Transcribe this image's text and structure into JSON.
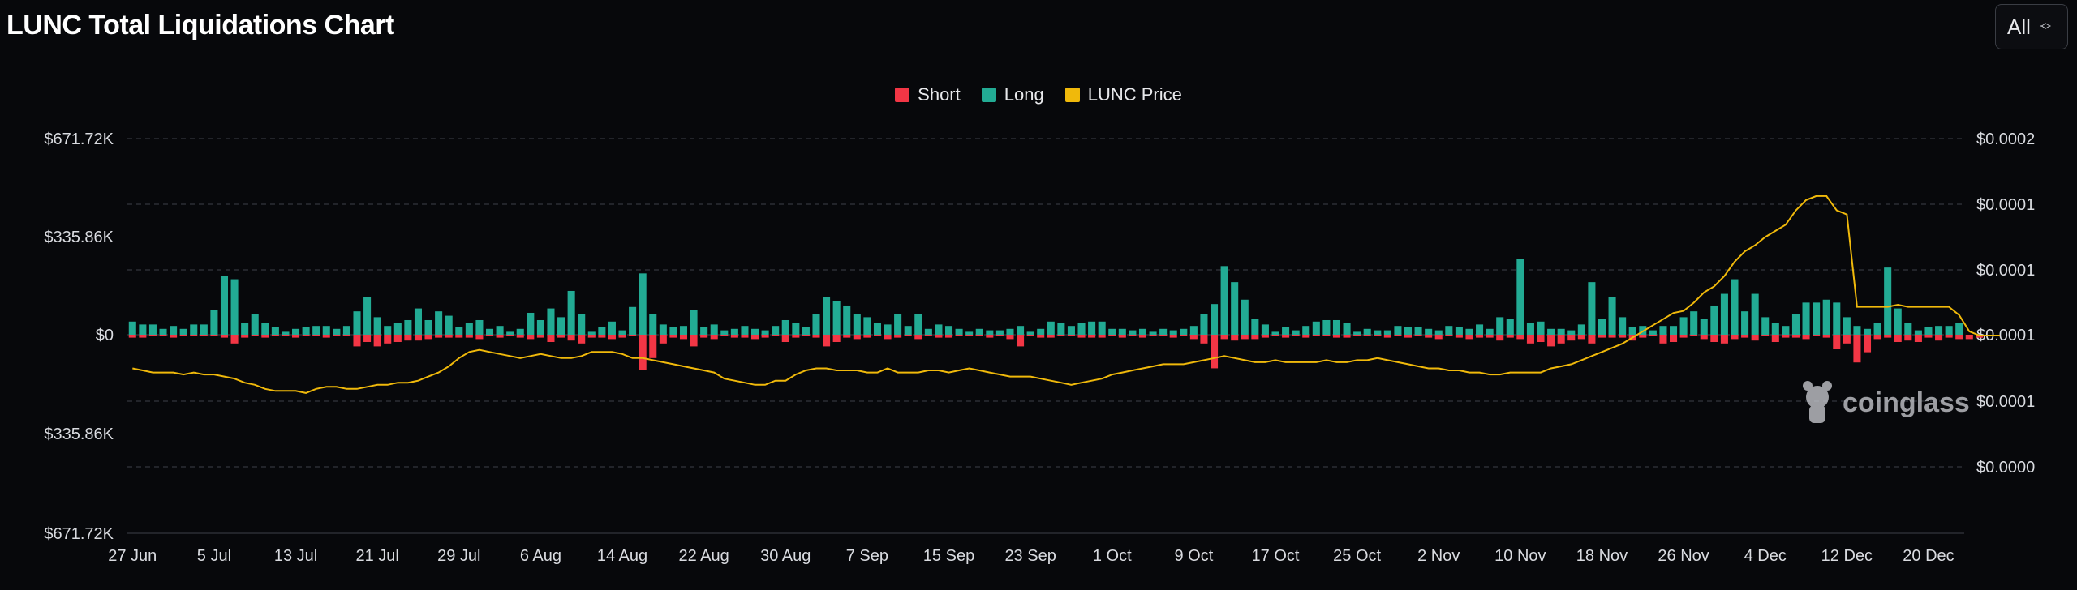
{
  "header": {
    "title": "LUNC Total Liquidations Chart"
  },
  "range_select": {
    "value": "All"
  },
  "colors": {
    "short": "#f23645",
    "long": "#22ab94",
    "price": "#f0b90b",
    "grid": "#2b2e35",
    "background": "#07080b"
  },
  "watermark": {
    "text": "coinglass",
    "icon": "coinglass-logo-icon"
  },
  "chart_data": {
    "type": "bar",
    "title": "LUNC Total Liquidations Chart",
    "legend": {
      "placement": "top-center",
      "entries": [
        "Short",
        "Long",
        "LUNC Price"
      ]
    },
    "grid": true,
    "left_axis": {
      "ticks": [
        "$671.72K",
        "$335.86K",
        "$0",
        "$335.86K",
        "$671.72K"
      ],
      "range": [
        -671720,
        671720
      ]
    },
    "right_axis": {
      "ticks": [
        "$0.0002",
        "$0.0001",
        "$0.0001",
        "$0.0001",
        "$0.0001",
        "$0.0000"
      ]
    },
    "x_ticks": [
      "27 Jun",
      "5 Jul",
      "13 Jul",
      "21 Jul",
      "29 Jul",
      "6 Aug",
      "14 Aug",
      "22 Aug",
      "30 Aug",
      "7 Sep",
      "15 Sep",
      "23 Sep",
      "1 Oct",
      "9 Oct",
      "17 Oct",
      "25 Oct",
      "2 Nov",
      "10 Nov",
      "18 Nov",
      "26 Nov",
      "4 Dec",
      "12 Dec",
      "20 Dec"
    ],
    "x_tick_indices": [
      0,
      8,
      16,
      24,
      32,
      40,
      48,
      56,
      64,
      72,
      80,
      88,
      96,
      104,
      112,
      120,
      128,
      136,
      144,
      152,
      160,
      168,
      176
    ],
    "days": 180,
    "series": [
      {
        "name": "Long",
        "values": [
          45000,
          35000,
          35000,
          20000,
          30000,
          20000,
          35000,
          35000,
          85000,
          200000,
          190000,
          40000,
          70000,
          40000,
          25000,
          10000,
          20000,
          25000,
          30000,
          30000,
          20000,
          30000,
          80000,
          130000,
          60000,
          30000,
          40000,
          50000,
          90000,
          50000,
          80000,
          65000,
          25000,
          40000,
          50000,
          20000,
          30000,
          10000,
          20000,
          75000,
          50000,
          90000,
          60000,
          150000,
          70000,
          10000,
          25000,
          45000,
          15000,
          95000,
          210000,
          70000,
          35000,
          25000,
          30000,
          85000,
          25000,
          35000,
          15000,
          20000,
          30000,
          20000,
          15000,
          30000,
          50000,
          40000,
          25000,
          70000,
          130000,
          115000,
          100000,
          70000,
          60000,
          40000,
          35000,
          70000,
          30000,
          70000,
          20000,
          35000,
          30000,
          20000,
          10000,
          20000,
          15000,
          15000,
          20000,
          30000,
          10000,
          20000,
          45000,
          40000,
          30000,
          40000,
          45000,
          45000,
          20000,
          20000,
          15000,
          20000,
          10000,
          20000,
          15000,
          20000,
          30000,
          70000,
          105000,
          235000,
          180000,
          120000,
          55000,
          35000,
          10000,
          25000,
          15000,
          30000,
          45000,
          50000,
          50000,
          40000,
          10000,
          20000,
          15000,
          15000,
          30000,
          25000,
          25000,
          20000,
          15000,
          30000,
          25000,
          20000,
          35000,
          20000,
          60000,
          55000,
          260000,
          40000,
          45000,
          20000,
          20000,
          15000,
          35000,
          180000,
          55000,
          130000,
          60000,
          25000,
          30000,
          15000,
          30000,
          30000,
          60000,
          80000,
          55000,
          100000,
          140000,
          190000,
          80000,
          140000,
          60000,
          40000,
          30000,
          70000,
          110000,
          110000,
          120000,
          110000,
          60000,
          30000,
          20000,
          40000,
          230000,
          90000,
          40000,
          15000,
          25000,
          30000,
          30000,
          40000
        ]
      },
      {
        "name": "Short",
        "values": [
          10000,
          10000,
          5000,
          5000,
          10000,
          5000,
          5000,
          5000,
          5000,
          10000,
          30000,
          10000,
          5000,
          10000,
          5000,
          5000,
          10000,
          5000,
          5000,
          10000,
          5000,
          5000,
          40000,
          25000,
          40000,
          30000,
          25000,
          20000,
          20000,
          15000,
          10000,
          10000,
          10000,
          10000,
          15000,
          5000,
          10000,
          5000,
          10000,
          15000,
          10000,
          25000,
          10000,
          20000,
          30000,
          10000,
          10000,
          15000,
          10000,
          5000,
          120000,
          80000,
          30000,
          10000,
          15000,
          40000,
          10000,
          15000,
          5000,
          10000,
          10000,
          15000,
          10000,
          5000,
          25000,
          10000,
          5000,
          10000,
          40000,
          25000,
          10000,
          15000,
          10000,
          5000,
          15000,
          10000,
          5000,
          15000,
          5000,
          10000,
          10000,
          5000,
          5000,
          5000,
          10000,
          5000,
          15000,
          40000,
          5000,
          10000,
          10000,
          5000,
          5000,
          10000,
          10000,
          10000,
          5000,
          10000,
          5000,
          10000,
          5000,
          5000,
          10000,
          5000,
          15000,
          30000,
          115000,
          15000,
          20000,
          15000,
          15000,
          10000,
          5000,
          10000,
          5000,
          10000,
          5000,
          5000,
          10000,
          10000,
          5000,
          5000,
          5000,
          10000,
          5000,
          10000,
          5000,
          10000,
          15000,
          5000,
          10000,
          15000,
          10000,
          10000,
          20000,
          10000,
          15000,
          30000,
          25000,
          40000,
          30000,
          20000,
          15000,
          30000,
          10000,
          10000,
          10000,
          20000,
          10000,
          5000,
          30000,
          25000,
          10000,
          5000,
          15000,
          25000,
          30000,
          15000,
          10000,
          20000,
          5000,
          25000,
          10000,
          10000,
          15000,
          5000,
          10000,
          50000,
          30000,
          95000,
          60000,
          15000,
          10000,
          25000,
          20000,
          25000,
          10000,
          20000,
          10000,
          15000,
          15000,
          10000
        ]
      },
      {
        "name": "LUNC Price",
        "values": [
          8.8e-05,
          8.7e-05,
          8.6e-05,
          8.6e-05,
          8.6e-05,
          8.5e-05,
          8.6e-05,
          8.5e-05,
          8.5e-05,
          8.4e-05,
          8.3e-05,
          8.1e-05,
          8e-05,
          7.8e-05,
          7.7e-05,
          7.7e-05,
          7.7e-05,
          7.6e-05,
          7.8e-05,
          7.9e-05,
          7.9e-05,
          7.8e-05,
          7.8e-05,
          7.9e-05,
          8e-05,
          8e-05,
          8.1e-05,
          8.1e-05,
          8.2e-05,
          8.4e-05,
          8.6e-05,
          8.9e-05,
          9.3e-05,
          9.6e-05,
          9.7e-05,
          9.6e-05,
          9.5e-05,
          9.4e-05,
          9.3e-05,
          9.4e-05,
          9.5e-05,
          9.4e-05,
          9.3e-05,
          9.3e-05,
          9.4e-05,
          9.6e-05,
          9.6e-05,
          9.6e-05,
          9.5e-05,
          9.3e-05,
          9.3e-05,
          9.2e-05,
          9.1e-05,
          9e-05,
          8.9e-05,
          8.8e-05,
          8.7e-05,
          8.6e-05,
          8.3e-05,
          8.2e-05,
          8.1e-05,
          8e-05,
          8e-05,
          8.2e-05,
          8.2e-05,
          8.5e-05,
          8.7e-05,
          8.8e-05,
          8.8e-05,
          8.7e-05,
          8.7e-05,
          8.7e-05,
          8.6e-05,
          8.6e-05,
          8.8e-05,
          8.6e-05,
          8.6e-05,
          8.6e-05,
          8.7e-05,
          8.7e-05,
          8.6e-05,
          8.7e-05,
          8.8e-05,
          8.7e-05,
          8.6e-05,
          8.5e-05,
          8.4e-05,
          8.4e-05,
          8.4e-05,
          8.3e-05,
          8.2e-05,
          8.1e-05,
          8e-05,
          8.1e-05,
          8.2e-05,
          8.3e-05,
          8.5e-05,
          8.6e-05,
          8.7e-05,
          8.8e-05,
          8.9e-05,
          9e-05,
          9e-05,
          9e-05,
          9.1e-05,
          9.2e-05,
          9.3e-05,
          9.4e-05,
          9.3e-05,
          9.2e-05,
          9.1e-05,
          9.1e-05,
          9.2e-05,
          9.1e-05,
          9.1e-05,
          9.1e-05,
          9.1e-05,
          9.2e-05,
          9.1e-05,
          9.1e-05,
          9.2e-05,
          9.2e-05,
          9.3e-05,
          9.2e-05,
          9.1e-05,
          9e-05,
          8.9e-05,
          8.8e-05,
          8.8e-05,
          8.7e-05,
          8.7e-05,
          8.6e-05,
          8.6e-05,
          8.5e-05,
          8.5e-05,
          8.6e-05,
          8.6e-05,
          8.6e-05,
          8.6e-05,
          8.8e-05,
          8.9e-05,
          9e-05,
          9.2e-05,
          9.4e-05,
          9.6e-05,
          9.8e-05,
          0.0001,
          0.000103,
          0.000106,
          0.000109,
          0.000112,
          0.000115,
          0.000116,
          0.00012,
          0.000125,
          0.000128,
          0.000133,
          0.00014,
          0.000145,
          0.000148,
          0.000152,
          0.000155,
          0.000158,
          0.000165,
          0.00017,
          0.000172,
          0.000172,
          0.000165,
          0.000163,
          0.000118,
          0.000118,
          0.000118,
          0.000118,
          0.000119,
          0.000118,
          0.000118,
          0.000118,
          0.000118,
          0.000118,
          0.000114,
          0.000106,
          0.000104,
          0.000104,
          0.000104
        ]
      }
    ]
  }
}
